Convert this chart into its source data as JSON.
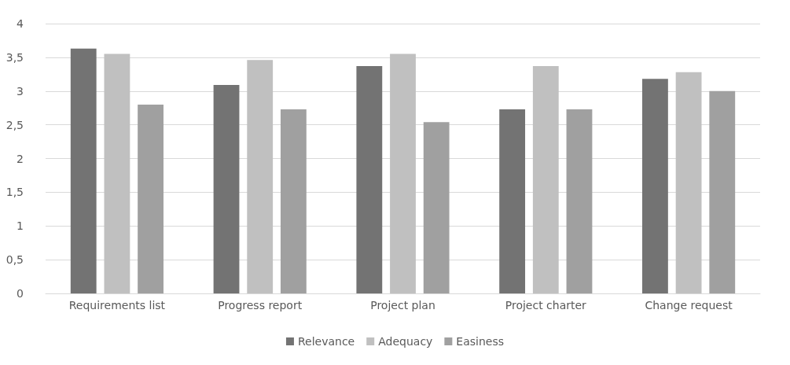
{
  "chart_data": {
    "type": "bar",
    "categories": [
      "Requirements list",
      "Progress report",
      "Project plan",
      "Project charter",
      "Change request"
    ],
    "series": [
      {
        "name": "Relevance",
        "color": "#737373",
        "values": [
          3.63,
          3.09,
          3.37,
          2.73,
          3.18
        ]
      },
      {
        "name": "Adequacy",
        "color": "#c0c0c0",
        "values": [
          3.55,
          3.46,
          3.55,
          3.37,
          3.28
        ]
      },
      {
        "name": "Easiness",
        "color": "#a0a0a0",
        "values": [
          2.8,
          2.73,
          2.54,
          2.73,
          3.0
        ]
      }
    ],
    "ylim": [
      0,
      4
    ],
    "yticks": [
      0,
      {
        "value": 0.5,
        "label": "0,5"
      },
      1,
      {
        "value": 1.5,
        "label": "1,5"
      },
      2,
      {
        "value": 2.5,
        "label": "2,5"
      },
      3,
      {
        "value": 3.5,
        "label": "3,5"
      },
      4
    ],
    "grid": "y",
    "legend": "bottom"
  }
}
